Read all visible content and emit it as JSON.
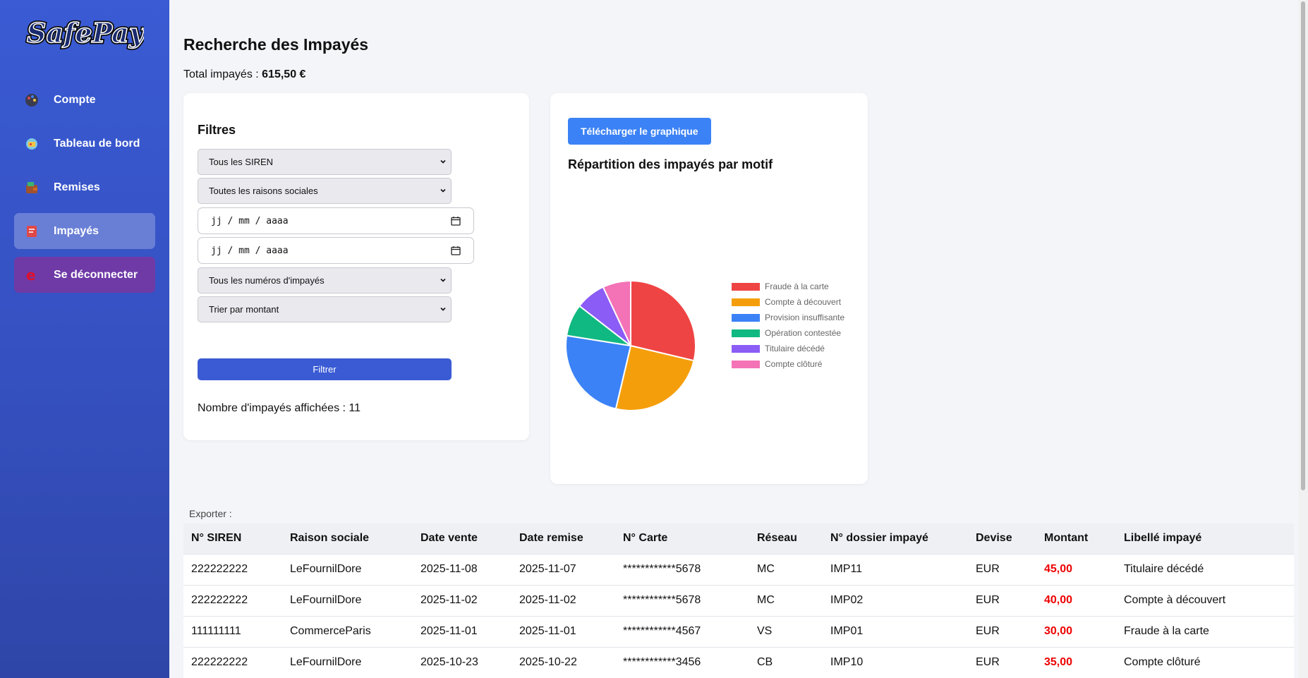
{
  "app": {
    "logo_text": "SafePay"
  },
  "sidebar": {
    "items": [
      {
        "label": "Compte",
        "icon": "palette-icon",
        "active": false
      },
      {
        "label": "Tableau de bord",
        "icon": "dashboard-icon",
        "active": false
      },
      {
        "label": "Remises",
        "icon": "wallet-icon",
        "active": false
      },
      {
        "label": "Impayés",
        "icon": "receipt-icon",
        "active": true
      },
      {
        "label": "Se déconnecter",
        "icon": "logout-icon",
        "active": false
      }
    ]
  },
  "page": {
    "title": "Recherche des Impayés",
    "total_label": "Total impayés : ",
    "total_value": "615,50 €"
  },
  "filters": {
    "title": "Filtres",
    "siren_select": "Tous les SIREN",
    "raison_select": "Toutes les raisons sociales",
    "date_from_placeholder": "jj / mm / aaaa",
    "date_to_placeholder": "jj / mm / aaaa",
    "numero_select": "Tous les numéros d'impayés",
    "sort_select": "Trier par montant",
    "filter_button": "Filtrer",
    "count_text": "Nombre d'impayés affichées : 11"
  },
  "chart_panel": {
    "download_button": "Télécharger le graphique",
    "title": "Répartition des impayés par motif"
  },
  "chart_data": {
    "type": "pie",
    "title": "Répartition des impayés par motif",
    "legend_position": "right",
    "categories": [
      "Fraude à la carte",
      "Compte à découvert",
      "Provision insuffisante",
      "Opération contestée",
      "Titulaire décédé",
      "Compte clôturé"
    ],
    "values": [
      28.7,
      25.0,
      23.8,
      8.0,
      7.5,
      7.0
    ],
    "colors": [
      "#ef4444",
      "#f59e0b",
      "#3b82f6",
      "#10b981",
      "#8b5cf6",
      "#f472b6"
    ]
  },
  "export": {
    "label": "Exporter :"
  },
  "table": {
    "headers": [
      "N° SIREN",
      "Raison sociale",
      "Date vente",
      "Date remise",
      "N° Carte",
      "Réseau",
      "N° dossier impayé",
      "Devise",
      "Montant",
      "Libellé impayé"
    ],
    "rows": [
      [
        "222222222",
        "LeFournilDore",
        "2025-11-08",
        "2025-11-07",
        "************5678",
        "MC",
        "IMP11",
        "EUR",
        "45,00",
        "Titulaire décédé"
      ],
      [
        "222222222",
        "LeFournilDore",
        "2025-11-02",
        "2025-11-02",
        "************5678",
        "MC",
        "IMP02",
        "EUR",
        "40,00",
        "Compte à découvert"
      ],
      [
        "111111111",
        "CommerceParis",
        "2025-11-01",
        "2025-11-01",
        "************4567",
        "VS",
        "IMP01",
        "EUR",
        "30,00",
        "Fraude à la carte"
      ],
      [
        "222222222",
        "LeFournilDore",
        "2025-10-23",
        "2025-10-22",
        "************3456",
        "CB",
        "IMP10",
        "EUR",
        "35,00",
        "Compte clôturé"
      ]
    ]
  }
}
